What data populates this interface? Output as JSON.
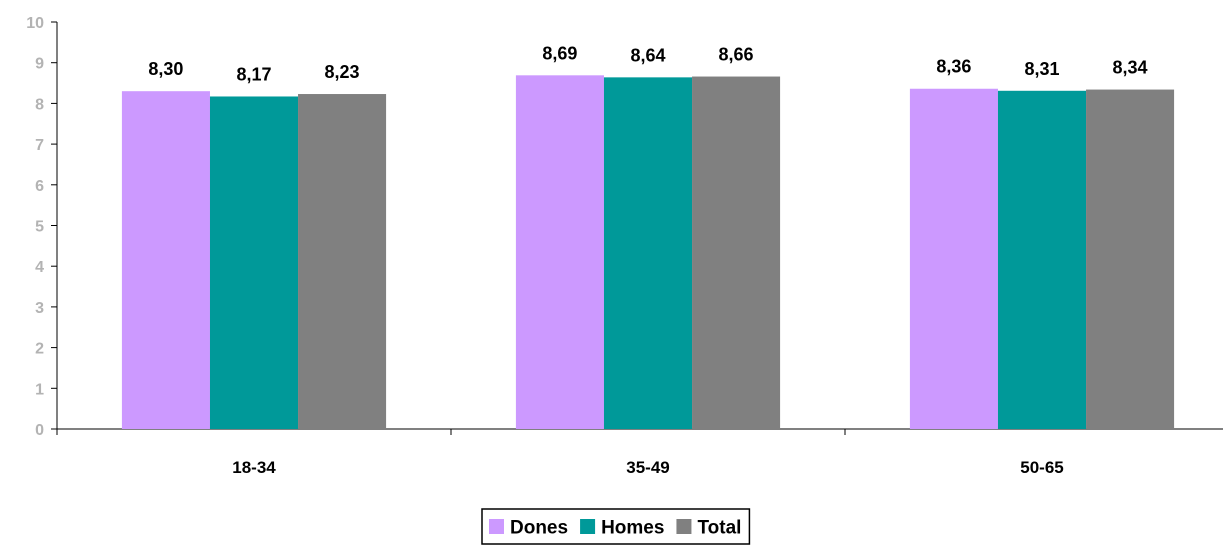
{
  "chart_data": {
    "type": "bar",
    "categories": [
      "18-34",
      "35-49",
      "50-65"
    ],
    "series": [
      {
        "name": "Dones",
        "values": [
          8.3,
          8.69,
          8.36
        ],
        "labels": [
          "8,30",
          "8,69",
          "8,36"
        ],
        "color": "#cc99ff"
      },
      {
        "name": "Homes",
        "values": [
          8.17,
          8.64,
          8.31
        ],
        "labels": [
          "8,17",
          "8,64",
          "8,31"
        ],
        "color": "#009999"
      },
      {
        "name": "Total",
        "values": [
          8.23,
          8.66,
          8.34
        ],
        "labels": [
          "8,23",
          "8,66",
          "8,34"
        ],
        "color": "#808080"
      }
    ],
    "ylim": [
      0,
      10
    ],
    "yticks": [
      0,
      1,
      2,
      3,
      4,
      5,
      6,
      7,
      8,
      9,
      10
    ],
    "title": "",
    "xlabel": "",
    "ylabel": "",
    "grid": false,
    "legend_position": "bottom"
  }
}
